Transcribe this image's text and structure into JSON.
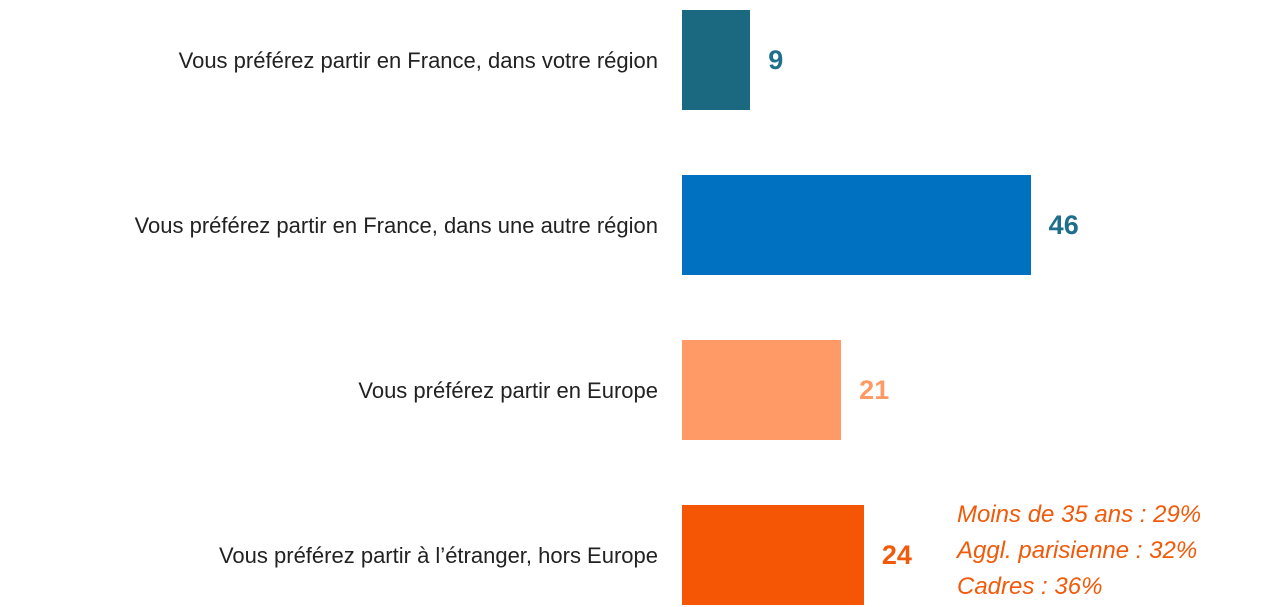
{
  "chart_data": {
    "type": "bar",
    "orientation": "horizontal",
    "categories": [
      "Vous préférez partir en France, dans votre région",
      "Vous préférez partir en France, dans une autre région",
      "Vous préférez partir en Europe",
      "Vous préférez partir à l’étranger, hors Europe"
    ],
    "values": [
      9,
      46,
      21,
      24
    ],
    "colors": [
      "#1b6980",
      "#0070c0",
      "#ff9a66",
      "#f55605"
    ],
    "label_colors": [
      "#1f6e8c",
      "#1f6e8c",
      "#ff9a66",
      "#f05a0a"
    ],
    "annotations": [
      "Moins de 35 ans : 29%",
      "Aggl. parisienne : 32%",
      "Cadres : 36%"
    ],
    "annotation_color": "#f05a0a"
  }
}
